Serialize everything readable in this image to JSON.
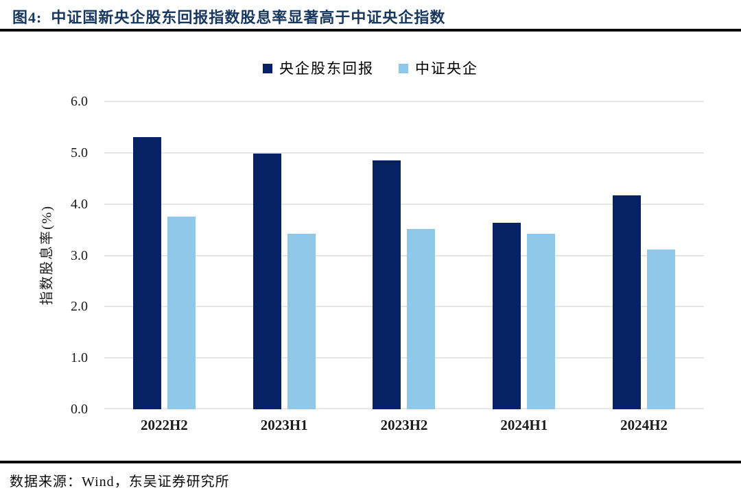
{
  "figure": {
    "title": "图4:  中证国新央企股东回报指数股息率显著高于中证央企指数",
    "source": "数据来源：Wind，东吴证券研究所"
  },
  "colors": {
    "title_navy": "#17375E",
    "rule_black": "#0a0a0a",
    "gridline_gray": "#E6E6E6",
    "series_dark_navy": "#062264",
    "series_light_blue": "#90C8EA"
  },
  "chart_data": {
    "type": "bar",
    "title": "",
    "categories": [
      "2022H2",
      "2023H1",
      "2023H2",
      "2024H1",
      "2024H2"
    ],
    "series": [
      {
        "name": "央企股东回报",
        "color": "#062264",
        "values": [
          5.3,
          4.99,
          4.85,
          3.63,
          4.17
        ]
      },
      {
        "name": "中证央企",
        "color": "#90C8EA",
        "values": [
          3.76,
          3.42,
          3.52,
          3.42,
          3.12
        ]
      }
    ],
    "xlabel": "",
    "ylabel": "指数股息率(%)",
    "ylim": [
      0,
      6
    ],
    "ytick_step": 1.0,
    "ytick_labels": [
      "0.0",
      "1.0",
      "2.0",
      "3.0",
      "4.0",
      "5.0",
      "6.0"
    ],
    "grid": "horizontal",
    "legend_position": "top-center"
  }
}
